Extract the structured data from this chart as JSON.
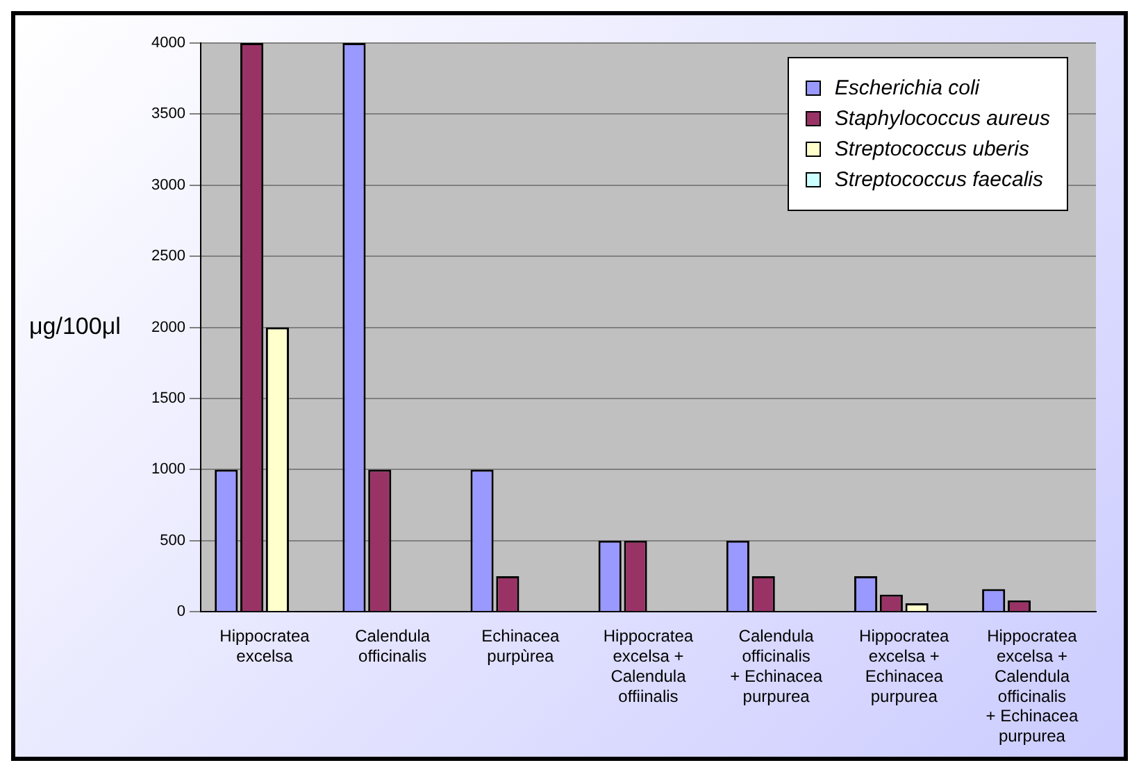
{
  "chart_data": {
    "type": "bar",
    "ylabel": "μg/100μl",
    "categories": [
      "Hippocratea excelsa",
      "Calendula officinalis",
      "Echinacea purpùrea",
      "Hippocratea excelsa + Calendula offiinalis",
      "Calendula officinalis + Echinacea purpurea",
      "Hippocratea excelsa + Echinacea purpurea",
      "Hippocratea excelsa + Calendula officinalis + Echinacea purpurea"
    ],
    "series": [
      {
        "name": "Escherichia coli",
        "color": "#9999ff",
        "values": [
          1000,
          4000,
          1000,
          500,
          500,
          250,
          160
        ]
      },
      {
        "name": "Staphylococcus aureus",
        "color": "#993366",
        "values": [
          4000,
          1000,
          250,
          500,
          250,
          120,
          80
        ]
      },
      {
        "name": "Streptococcus uberis",
        "color": "#ffffcc",
        "values": [
          2000,
          0,
          0,
          0,
          0,
          60,
          0
        ]
      },
      {
        "name": "Streptococcus faecalis",
        "color": "#ccffff",
        "values": [
          0,
          0,
          0,
          0,
          0,
          0,
          0
        ]
      }
    ],
    "ylim": [
      0,
      4000
    ],
    "yticks": [
      0,
      500,
      1000,
      1500,
      2000,
      2500,
      3000,
      3500,
      4000
    ],
    "grid": "y",
    "legend": "top right"
  }
}
